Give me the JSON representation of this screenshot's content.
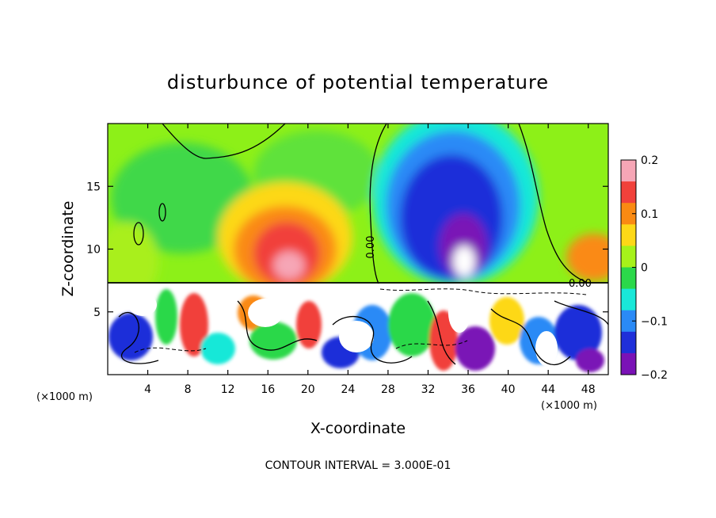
{
  "chart_data": {
    "type": "heatmap",
    "title": "disturbunce of potential temperature",
    "xlabel": "X-coordinate",
    "ylabel": "Z-coordinate",
    "x_unit": "(×1000 m)",
    "x_unit_right": "(×1000 m)",
    "x_ticks": [
      4,
      8,
      12,
      16,
      20,
      24,
      28,
      32,
      36,
      40,
      44,
      48
    ],
    "x_tick_labels": [
      "4",
      "8",
      "12",
      "16",
      "20",
      "24",
      "28",
      "32",
      "36",
      "40",
      "44",
      "48"
    ],
    "y_ticks": [
      5,
      10,
      15
    ],
    "y_tick_labels": [
      "5",
      "10",
      "15"
    ],
    "xlim": [
      0,
      50
    ],
    "ylim": [
      0,
      20
    ],
    "colorbar": {
      "range": [
        -0.2,
        0.2
      ],
      "tick_values": [
        0.2,
        0.1,
        0,
        -0.1,
        -0.2
      ],
      "tick_labels": [
        "0.2",
        "0.1",
        "0",
        "−0.1",
        "−0.2"
      ],
      "colors": [
        "#f6a6b6",
        "#f1413b",
        "#fa8a12",
        "#fdd817",
        "#a6f21a",
        "#2bd84a",
        "#19e8d8",
        "#2a8af6",
        "#1f2fd9",
        "#7a12b6"
      ]
    },
    "contour_labels": [
      {
        "text": "0.00",
        "x": 28,
        "y": 10.5
      },
      {
        "text": "0.00",
        "x": 48,
        "y": 7.3
      }
    ],
    "features": [
      {
        "name": "warm anomaly",
        "x_center": 18,
        "z_center": 10,
        "value": 0.15
      },
      {
        "name": "cold anomaly",
        "x_center": 34,
        "z_center": 11,
        "value": -0.2
      }
    ],
    "footer": "CONTOUR INTERVAL = 3.000E-01"
  }
}
